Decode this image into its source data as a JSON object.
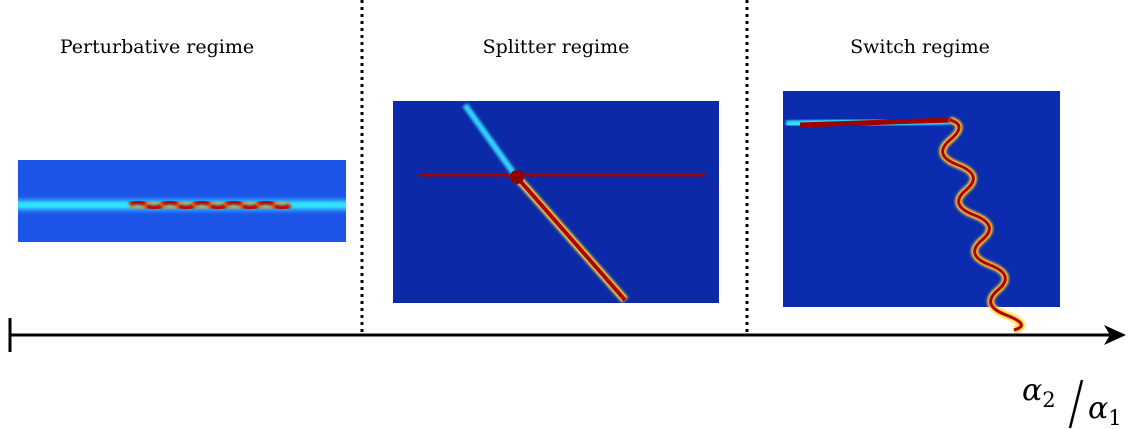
{
  "regimes": [
    {
      "label": "Perturbative regime"
    },
    {
      "label": "Splitter regime"
    },
    {
      "label": "Switch regime"
    }
  ],
  "axis_label": {
    "numerator": {
      "symbol": "α",
      "subscript": "2"
    },
    "denominator": {
      "symbol": "α",
      "subscript": "1"
    }
  }
}
